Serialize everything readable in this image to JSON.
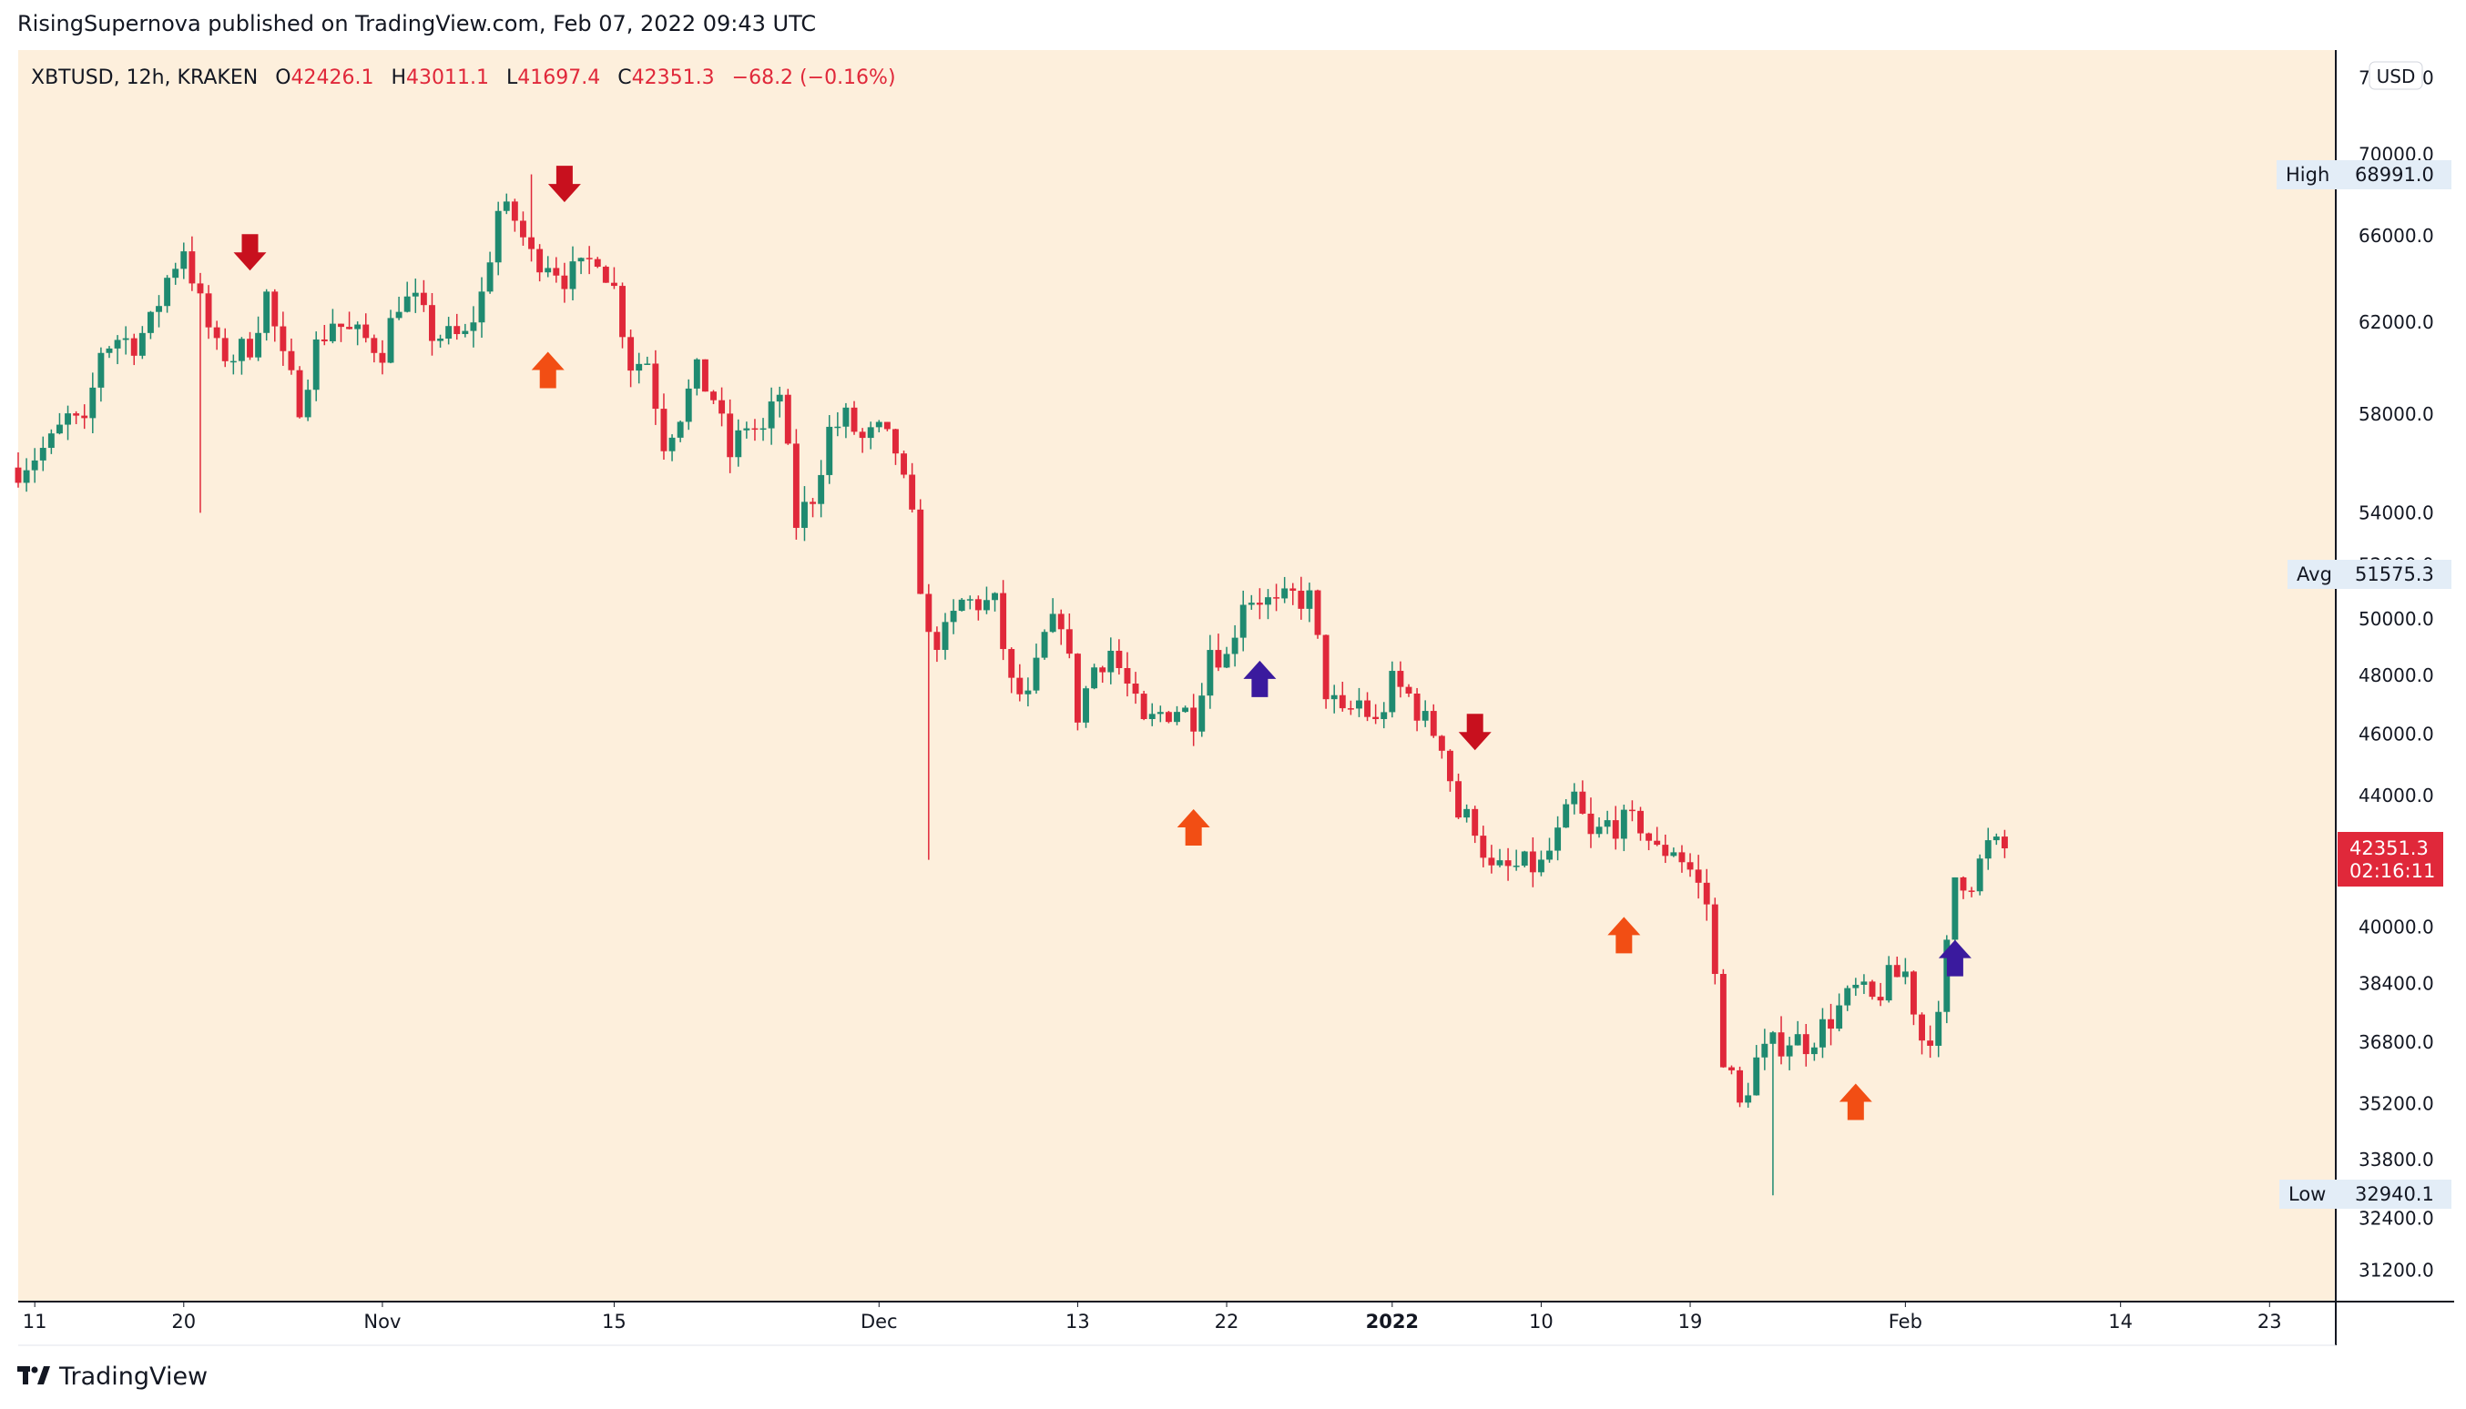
{
  "header": {
    "publish_line": "RisingSupernova published on TradingView.com, Feb 07, 2022 09:43 UTC"
  },
  "legend": {
    "symbol": "XBTUSD, 12h, KRAKEN",
    "o_label": "O",
    "o_value": "42426.1",
    "h_label": "H",
    "h_value": "43011.1",
    "l_label": "L",
    "l_value": "41697.4",
    "c_label": "C",
    "c_value": "42351.3",
    "change": "−68.2 (−0.16%)"
  },
  "price_scale": {
    "currency": "USD",
    "ticks": [
      "74000.0",
      "70000.0",
      "66000.0",
      "62000.0",
      "58000.0",
      "54000.0",
      "52000.0",
      "50000.0",
      "48000.0",
      "46000.0",
      "44000.0",
      "40000.0",
      "38400.0",
      "36800.0",
      "35200.0",
      "33800.0",
      "32400.0",
      "31200.0"
    ],
    "high_label": "High",
    "high_value": "68991.0",
    "avg_label": "Avg",
    "avg_value": "51575.3",
    "low_label": "Low",
    "low_value": "32940.1",
    "last_price": "42351.3",
    "countdown": "02:16:11"
  },
  "time_axis": {
    "labels": [
      "11",
      "20",
      "Nov",
      "15",
      "Dec",
      "13",
      "22",
      "2022",
      "10",
      "19",
      "Feb",
      "14",
      "23"
    ]
  },
  "footer": {
    "brand": "TradingView"
  },
  "colors": {
    "background": "#fdefdc",
    "up": "#1f8a70",
    "down": "#e0283a",
    "arrow_sell": "#c8101e",
    "arrow_buy": "#f24e14",
    "arrow_buy_strong": "#3a1a9e",
    "legend_value": "#e0283a"
  },
  "chart_data": {
    "type": "candlestick",
    "symbol": "XBTUSD",
    "interval": "12h",
    "exchange": "KRAKEN",
    "scale": "log",
    "ylim": [
      30500,
      75500
    ],
    "x_start": "2021-10-10",
    "x_end": "2022-02-27",
    "close_path": [
      [
        "2021-10-10",
        55800
      ],
      [
        "2021-10-12",
        56800
      ],
      [
        "2021-10-13",
        57800
      ],
      [
        "2021-10-14",
        57300
      ],
      [
        "2021-10-15",
        60800
      ],
      [
        "2021-10-16",
        61300
      ],
      [
        "2021-10-17",
        61100
      ],
      [
        "2021-10-18",
        61900
      ],
      [
        "2021-10-19",
        64000
      ],
      [
        "2021-10-20",
        65500
      ],
      [
        "2021-10-21",
        62800
      ],
      [
        "2021-10-22",
        60700
      ],
      [
        "2021-10-23",
        60500
      ],
      [
        "2021-10-24",
        61000
      ],
      [
        "2021-10-25",
        63200
      ],
      [
        "2021-10-26",
        60200
      ],
      [
        "2021-10-27",
        58500
      ],
      [
        "2021-10-28",
        60900
      ],
      [
        "2021-10-29",
        62100
      ],
      [
        "2021-10-30",
        61500
      ],
      [
        "2021-10-31",
        61200
      ],
      [
        "2021-11-01",
        60800
      ],
      [
        "2021-11-02",
        63000
      ],
      [
        "2021-11-03",
        62800
      ],
      [
        "2021-11-04",
        61500
      ],
      [
        "2021-11-05",
        61300
      ],
      [
        "2021-11-06",
        61300
      ],
      [
        "2021-11-07",
        63200
      ],
      [
        "2021-11-08",
        67200
      ],
      [
        "2021-11-09",
        66800
      ],
      [
        "2021-11-10",
        65000
      ],
      [
        "2021-11-11",
        64900
      ],
      [
        "2021-11-12",
        64100
      ],
      [
        "2021-11-13",
        64300
      ],
      [
        "2021-11-14",
        65200
      ],
      [
        "2021-11-15",
        63500
      ],
      [
        "2021-11-16",
        60200
      ],
      [
        "2021-11-17",
        60300
      ],
      [
        "2021-11-18",
        56900
      ],
      [
        "2021-11-19",
        58100
      ],
      [
        "2021-11-20",
        59700
      ],
      [
        "2021-11-21",
        58700
      ],
      [
        "2021-11-22",
        56300
      ],
      [
        "2021-11-23",
        57600
      ],
      [
        "2021-11-24",
        57200
      ],
      [
        "2021-11-25",
        58900
      ],
      [
        "2021-11-26",
        53600
      ],
      [
        "2021-11-27",
        54700
      ],
      [
        "2021-11-28",
        57300
      ],
      [
        "2021-11-29",
        57800
      ],
      [
        "2021-11-30",
        56900
      ],
      [
        "2021-12-01",
        57200
      ],
      [
        "2021-12-02",
        56500
      ],
      [
        "2021-12-03",
        53600
      ],
      [
        "2021-12-04",
        49200
      ],
      [
        "2021-12-05",
        49400
      ],
      [
        "2021-12-06",
        50600
      ],
      [
        "2021-12-07",
        50600
      ],
      [
        "2021-12-08",
        50500
      ],
      [
        "2021-12-09",
        47600
      ],
      [
        "2021-12-10",
        47100
      ],
      [
        "2021-12-11",
        49300
      ],
      [
        "2021-12-12",
        50100
      ],
      [
        "2021-12-13",
        46700
      ],
      [
        "2021-12-14",
        48300
      ],
      [
        "2021-12-15",
        48900
      ],
      [
        "2021-12-16",
        47600
      ],
      [
        "2021-12-17",
        46200
      ],
      [
        "2021-12-18",
        46700
      ],
      [
        "2021-12-19",
        46900
      ],
      [
        "2021-12-20",
        46600
      ],
      [
        "2021-12-21",
        49000
      ],
      [
        "2021-12-22",
        48600
      ],
      [
        "2021-12-23",
        50800
      ],
      [
        "2021-12-24",
        50800
      ],
      [
        "2021-12-25",
        50400
      ],
      [
        "2021-12-26",
        50800
      ],
      [
        "2021-12-27",
        50700
      ],
      [
        "2021-12-28",
        47500
      ],
      [
        "2021-12-29",
        46500
      ],
      [
        "2021-12-30",
        47100
      ],
      [
        "2021-12-31",
        46300
      ],
      [
        "2022-01-01",
        47700
      ],
      [
        "2022-01-02",
        47300
      ],
      [
        "2022-01-03",
        46400
      ],
      [
        "2022-01-04",
        45800
      ],
      [
        "2022-01-05",
        43400
      ],
      [
        "2022-01-06",
        43100
      ],
      [
        "2022-01-07",
        41600
      ],
      [
        "2022-01-08",
        41700
      ],
      [
        "2022-01-09",
        41800
      ],
      [
        "2022-01-10",
        41800
      ],
      [
        "2022-01-11",
        42700
      ],
      [
        "2022-01-12",
        43900
      ],
      [
        "2022-01-13",
        42600
      ],
      [
        "2022-01-14",
        43100
      ],
      [
        "2022-01-15",
        43100
      ],
      [
        "2022-01-16",
        43100
      ],
      [
        "2022-01-17",
        42200
      ],
      [
        "2022-01-18",
        42400
      ],
      [
        "2022-01-19",
        41700
      ],
      [
        "2022-01-20",
        40700
      ],
      [
        "2022-01-21",
        36500
      ],
      [
        "2022-01-22",
        35100
      ],
      [
        "2022-01-23",
        36300
      ],
      [
        "2022-01-24",
        36700
      ],
      [
        "2022-01-25",
        36900
      ],
      [
        "2022-01-26",
        36800
      ],
      [
        "2022-01-27",
        37200
      ],
      [
        "2022-01-28",
        37700
      ],
      [
        "2022-01-29",
        38200
      ],
      [
        "2022-01-30",
        37900
      ],
      [
        "2022-01-31",
        38500
      ],
      [
        "2022-02-01",
        38700
      ],
      [
        "2022-02-02",
        36900
      ],
      [
        "2022-02-03",
        37300
      ],
      [
        "2022-02-04",
        41500
      ],
      [
        "2022-02-05",
        41400
      ],
      [
        "2022-02-06",
        42400
      ],
      [
        "2022-02-07",
        42351.3
      ]
    ],
    "wick_spikes": [
      {
        "date": "2021-10-21",
        "low": 54000
      },
      {
        "date": "2021-11-10",
        "high": 69000
      },
      {
        "date": "2021-12-04",
        "low": 42000
      },
      {
        "date": "2022-01-24",
        "low": 32940.1
      }
    ],
    "signals": [
      {
        "date": "2021-10-24",
        "type": "sell"
      },
      {
        "date": "2021-11-11",
        "type": "buy"
      },
      {
        "date": "2021-11-12",
        "type": "sell"
      },
      {
        "date": "2021-12-20",
        "type": "buy"
      },
      {
        "date": "2021-12-24",
        "type": "buy-strong"
      },
      {
        "date": "2022-01-06",
        "type": "sell"
      },
      {
        "date": "2022-01-15",
        "type": "buy"
      },
      {
        "date": "2022-01-29",
        "type": "buy"
      },
      {
        "date": "2022-02-04",
        "type": "buy-strong"
      }
    ]
  }
}
